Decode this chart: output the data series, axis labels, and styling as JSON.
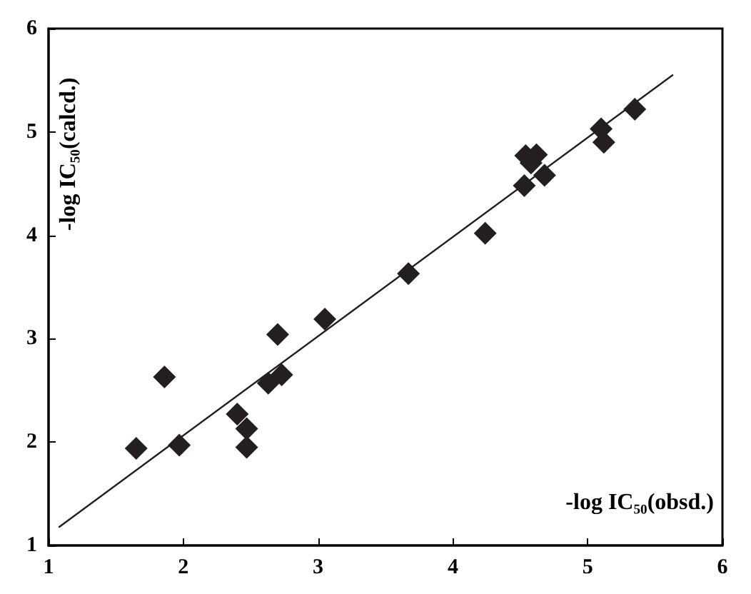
{
  "chart_data": {
    "type": "scatter",
    "xlabel": "-log IC₅₀(obsd.)",
    "ylabel": "-log IC₅₀(calcd.)",
    "marker": "diamond",
    "grid": false,
    "xlim": [
      1,
      6
    ],
    "ylim": [
      1,
      6
    ],
    "xticks": [
      1,
      2,
      3,
      4,
      5,
      6
    ],
    "yticks": [
      1,
      2,
      3,
      4,
      5,
      6
    ],
    "series": [
      {
        "color": "#231f20",
        "x": [
          1.65,
          1.86,
          1.97,
          2.4,
          2.47,
          2.47,
          2.63,
          2.73,
          2.7,
          3.05,
          3.67,
          4.24,
          4.53,
          4.54,
          4.62,
          4.58,
          4.68,
          5.1,
          5.12,
          5.35
        ],
        "values": [
          1.94,
          2.63,
          1.97,
          2.27,
          2.13,
          1.95,
          2.57,
          2.65,
          3.04,
          3.19,
          3.63,
          4.02,
          4.48,
          4.77,
          4.78,
          4.7,
          4.58,
          5.03,
          4.9,
          5.22
        ]
      },
      {
        "type": "line",
        "color": "#231f20",
        "marker": "none",
        "line_style": "solid",
        "x": [
          1.08,
          5.63
        ],
        "values": [
          1.18,
          5.55
        ]
      }
    ]
  }
}
